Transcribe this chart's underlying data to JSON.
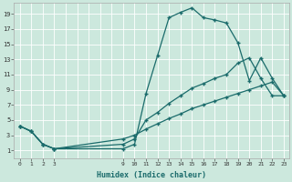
{
  "xlabel": "Humidex (Indice chaleur)",
  "background_color": "#cce8dd",
  "grid_color": "#ffffff",
  "line_color": "#1a6b6b",
  "xlim": [
    -0.5,
    23.5
  ],
  "ylim": [
    0,
    20.5
  ],
  "xtick_positions": [
    0,
    1,
    2,
    3,
    9,
    10,
    11,
    12,
    13,
    14,
    15,
    16,
    17,
    18,
    19,
    20,
    21,
    22,
    23
  ],
  "xtick_labels": [
    "0",
    "1",
    "2",
    "3",
    "9",
    "10",
    "11",
    "12",
    "13",
    "14",
    "15",
    "16",
    "17",
    "18",
    "19",
    "20",
    "21",
    "22",
    "23"
  ],
  "ytick_positions": [
    1,
    3,
    5,
    7,
    9,
    11,
    13,
    15,
    17,
    19
  ],
  "ytick_labels": [
    "1",
    "3",
    "5",
    "7",
    "9",
    "11",
    "13",
    "15",
    "17",
    "19"
  ],
  "grid_x": [
    0,
    1,
    2,
    3,
    4,
    5,
    6,
    7,
    8,
    9,
    10,
    11,
    12,
    13,
    14,
    15,
    16,
    17,
    18,
    19,
    20,
    21,
    22,
    23
  ],
  "grid_y": [
    1,
    3,
    5,
    7,
    9,
    11,
    13,
    15,
    17,
    19
  ],
  "line1_x": [
    0,
    1,
    2,
    3,
    9,
    10,
    11,
    12,
    13,
    14,
    15,
    16,
    17,
    18,
    19,
    20,
    21,
    22,
    23
  ],
  "line1_y": [
    4.2,
    3.5,
    1.8,
    1.2,
    1.2,
    1.8,
    8.5,
    13.5,
    18.5,
    19.2,
    19.8,
    18.5,
    18.2,
    17.8,
    15.2,
    10.2,
    13.2,
    10.5,
    8.2
  ],
  "line2_x": [
    0,
    1,
    2,
    3,
    9,
    10,
    11,
    12,
    13,
    14,
    15,
    16,
    17,
    18,
    19,
    20,
    21,
    22,
    23
  ],
  "line2_y": [
    4.2,
    3.5,
    1.8,
    1.2,
    1.8,
    2.5,
    5.0,
    6.0,
    7.2,
    8.2,
    9.2,
    9.8,
    10.5,
    11.0,
    12.5,
    13.2,
    10.5,
    8.2,
    8.2
  ],
  "line3_x": [
    0,
    1,
    2,
    3,
    9,
    10,
    11,
    12,
    13,
    14,
    15,
    16,
    17,
    18,
    19,
    20,
    21,
    22,
    23
  ],
  "line3_y": [
    4.2,
    3.5,
    1.8,
    1.2,
    2.5,
    3.0,
    3.8,
    4.5,
    5.2,
    5.8,
    6.5,
    7.0,
    7.5,
    8.0,
    8.5,
    9.0,
    9.5,
    10.0,
    8.2
  ]
}
